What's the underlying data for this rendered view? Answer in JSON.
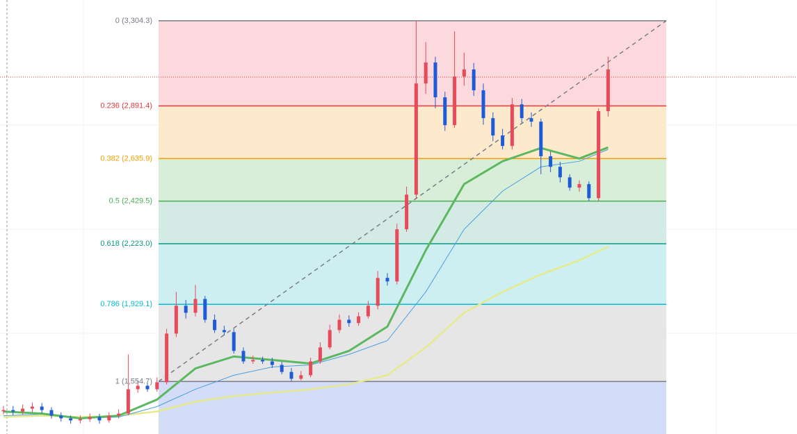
{
  "chart_data": {
    "type": "candlestick",
    "ylim": [
      1300,
      3405
    ],
    "up_color": "#e84a5a",
    "down_color": "#1e5bd6",
    "open": [
      1410,
      1416,
      1409,
      1423,
      1433,
      1416,
      1389,
      1376,
      1366,
      1372,
      1382,
      1366,
      1389,
      1399,
      1517,
      1534,
      1517,
      1551,
      1787,
      1922,
      1888,
      1955,
      1854,
      1804,
      1794,
      1703,
      1652,
      1659,
      1652,
      1635,
      1601,
      1568,
      1585,
      1652,
      1720,
      1804,
      1854,
      1838,
      1871,
      1922,
      2057,
      2040,
      2293,
      2461,
      3000,
      3102,
      2933,
      2798,
      3034,
      3068,
      2967,
      2832,
      2748,
      2697,
      2899,
      2832,
      2815,
      2647,
      2596,
      2545,
      2495,
      2512,
      2444,
      2866
    ],
    "high": [
      1436,
      1436,
      1443,
      1453,
      1450,
      1430,
      1405,
      1390,
      1390,
      1400,
      1398,
      1405,
      1420,
      1686,
      1560,
      1550,
      1575,
      1810,
      1989,
      1950,
      2023,
      1970,
      1880,
      1825,
      1810,
      1720,
      1680,
      1675,
      1670,
      1650,
      1620,
      1605,
      1670,
      1745,
      1830,
      1880,
      1875,
      1890,
      1945,
      2090,
      2080,
      2320,
      2500,
      3304,
      3200,
      3130,
      2960,
      3253,
      3150,
      3100,
      3000,
      2860,
      2780,
      2930,
      2925,
      2860,
      2830,
      2670,
      2620,
      2560,
      2530,
      2525,
      2880,
      3130
    ],
    "low": [
      1395,
      1390,
      1395,
      1405,
      1400,
      1375,
      1360,
      1350,
      1352,
      1360,
      1350,
      1355,
      1375,
      1390,
      1500,
      1505,
      1505,
      1540,
      1770,
      1860,
      1870,
      1840,
      1790,
      1780,
      1690,
      1640,
      1640,
      1640,
      1620,
      1590,
      1555,
      1560,
      1575,
      1640,
      1710,
      1790,
      1820,
      1825,
      1860,
      1905,
      2020,
      2025,
      2280,
      2440,
      2950,
      2880,
      2770,
      2785,
      2990,
      2940,
      2800,
      2720,
      2680,
      2680,
      2810,
      2790,
      2560,
      2570,
      2520,
      2480,
      2475,
      2430,
      2430,
      2840
    ],
    "close": [
      1416,
      1409,
      1423,
      1433,
      1416,
      1389,
      1376,
      1366,
      1372,
      1382,
      1366,
      1389,
      1399,
      1517,
      1534,
      1517,
      1551,
      1787,
      1922,
      1888,
      1955,
      1854,
      1804,
      1794,
      1703,
      1652,
      1659,
      1652,
      1635,
      1601,
      1568,
      1585,
      1652,
      1720,
      1804,
      1854,
      1838,
      1871,
      1922,
      2057,
      2040,
      2293,
      2461,
      3000,
      3102,
      2933,
      2798,
      3034,
      3068,
      2967,
      2832,
      2748,
      2697,
      2899,
      2832,
      2815,
      2647,
      2596,
      2545,
      2495,
      2512,
      2444,
      2866,
      3068
    ],
    "moving_averages": [
      {
        "color": "#e6ea8c",
        "x": [
          0,
          4,
          8,
          12,
          16,
          20,
          24,
          28,
          32,
          36,
          40,
          44,
          48,
          52,
          56,
          60,
          63
        ],
        "values": [
          1382,
          1389,
          1382,
          1389,
          1409,
          1457,
          1484,
          1501,
          1517,
          1541,
          1585,
          1720,
          1888,
          1989,
          2074,
          2142,
          2209
        ]
      },
      {
        "color": "#4a9ee0",
        "x": [
          0,
          4,
          8,
          12,
          16,
          20,
          24,
          28,
          32,
          36,
          40,
          44,
          48,
          52,
          56,
          60,
          63
        ],
        "values": [
          1389,
          1396,
          1376,
          1382,
          1433,
          1517,
          1585,
          1625,
          1635,
          1686,
          1753,
          1989,
          2293,
          2478,
          2596,
          2623,
          2680
        ]
      },
      {
        "color": "#5cb860",
        "x": [
          0,
          4,
          8,
          12,
          16,
          20,
          24,
          28,
          32,
          36,
          40,
          44,
          48,
          52,
          56,
          60,
          63
        ],
        "values": [
          1409,
          1399,
          1376,
          1389,
          1467,
          1618,
          1676,
          1659,
          1642,
          1703,
          1821,
          2191,
          2512,
          2623,
          2687,
          2636,
          2690
        ]
      }
    ],
    "fib_levels": [
      {
        "label": "0 (3,304.3)",
        "price": 3304.3,
        "line_color": "#787b86",
        "fill_color": "#fcd9dc"
      },
      {
        "label": "0.236 (2,891.4)",
        "price": 2891.4,
        "line_color": "#e0393e",
        "fill_color": "#fde9cc"
      },
      {
        "label": "0.382 (2,635.9)",
        "price": 2635.9,
        "line_color": "#f0a000",
        "fill_color": "#d9eed9"
      },
      {
        "label": "0.5 (2,429.5)",
        "price": 2429.5,
        "line_color": "#4caf50",
        "fill_color": "#d3ebe4"
      },
      {
        "label": "0.618 (2,223.0)",
        "price": 2223.0,
        "line_color": "#089981",
        "fill_color": "#cdeff2"
      },
      {
        "label": "0.786 (1,929.1)",
        "price": 1929.1,
        "line_color": "#00bcd4",
        "fill_color": "#e6e6e6"
      },
      {
        "label": "1 (1,554.7)",
        "price": 1554.7,
        "line_color": "#787b86",
        "fill_color": "#d3ddf8"
      }
    ],
    "price_line": 3031,
    "price_line_color": "#e0393e"
  }
}
